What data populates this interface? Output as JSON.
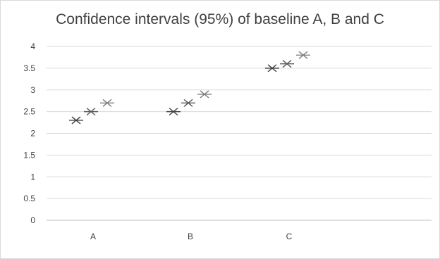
{
  "chart_data": {
    "type": "scatter",
    "title": "Confidence intervals (95%) of baseline A, B and C",
    "xlabel": "",
    "ylabel": "",
    "categories": [
      "A",
      "B",
      "C"
    ],
    "ylim": [
      0,
      4
    ],
    "yticks": [
      "0",
      "0.5",
      "1",
      "1.5",
      "2",
      "2.5",
      "3",
      "3.5",
      "4"
    ],
    "grid": true,
    "legend": "none",
    "marker": "star",
    "series": [
      {
        "values": [
          2.3,
          2.5,
          3.5
        ],
        "color": "#404040"
      },
      {
        "values": [
          2.5,
          2.7,
          3.6
        ],
        "color": "#595959"
      },
      {
        "values": [
          2.7,
          2.9,
          3.8
        ],
        "color": "#7f7f7f"
      }
    ]
  }
}
